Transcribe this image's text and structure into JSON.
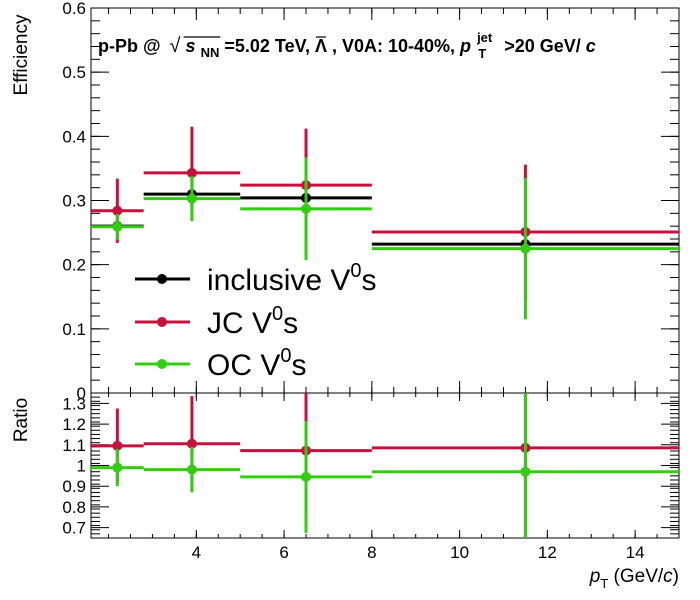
{
  "colors": {
    "inclusive": "#000000",
    "jc": "#c8103c",
    "oc": "#32cd10"
  },
  "header": {
    "prefix": "p-Pb @ ",
    "sqrt": "s",
    "sqrt_sub": "NN",
    "energy": "=5.02 TeV, ",
    "lambda_bar": "Λ",
    "middle": ", V0A: 10-40%, ",
    "pt": "p",
    "pt_sup": "jet",
    "pt_sub": "T",
    "tail": ">20 GeV/",
    "c": "c"
  },
  "legend": [
    {
      "key": "inclusive",
      "label": "inclusive V",
      "sup": "0",
      "suffix": "s"
    },
    {
      "key": "jc",
      "label": "JC V",
      "sup": "0",
      "suffix": "s"
    },
    {
      "key": "oc",
      "label": "OC V",
      "sup": "0",
      "suffix": "s"
    }
  ],
  "chart_data": [
    {
      "type": "scatter",
      "panel": "top",
      "ylabel": "Efficiency",
      "xlim": [
        1.6,
        15.0
      ],
      "ylim": [
        0.0,
        0.6
      ],
      "yticks": [
        "0",
        "0.1",
        "0.2",
        "0.3",
        "0.4",
        "0.5",
        "0.6"
      ],
      "ytick_values": [
        0,
        0.1,
        0.2,
        0.3,
        0.4,
        0.5,
        0.6
      ],
      "x_edges": [
        [
          1.6,
          2.8
        ],
        [
          2.8,
          5.0
        ],
        [
          5.0,
          8.0
        ],
        [
          8.0,
          15.0
        ]
      ],
      "x_centers": [
        2.2,
        3.9,
        6.5,
        11.5
      ],
      "series": [
        {
          "key": "inclusive",
          "name": "inclusive V0s",
          "values": [
            0.26,
            0.31,
            0.304,
            0.232
          ],
          "errors": [
            0.0,
            0.0,
            0.0,
            0.0
          ]
        },
        {
          "key": "jc",
          "name": "JC V0s",
          "values": [
            0.284,
            0.343,
            0.324,
            0.251
          ],
          "errors": [
            0.05,
            0.072,
            0.088,
            0.105
          ]
        },
        {
          "key": "oc",
          "name": "OC V0s",
          "values": [
            0.259,
            0.303,
            0.287,
            0.225
          ],
          "errors": [
            0.02,
            0.035,
            0.08,
            0.11
          ]
        }
      ]
    },
    {
      "type": "scatter",
      "panel": "ratio",
      "xlabel_main": "p",
      "xlabel_sub": "T",
      "xlabel_units_pre": " (GeV/",
      "xlabel_units_c": "c",
      "xlabel_units_post": ")",
      "ylabel": "Ratio",
      "xlim": [
        1.6,
        15.0
      ],
      "ylim": [
        0.65,
        1.35
      ],
      "xticks": [
        "4",
        "6",
        "8",
        "10",
        "12",
        "14"
      ],
      "xtick_values": [
        4,
        6,
        8,
        10,
        12,
        14
      ],
      "yticks": [
        "0.7",
        "0.8",
        "0.9",
        "1",
        "1.1",
        "1.2",
        "1.3"
      ],
      "ytick_values": [
        0.7,
        0.8,
        0.9,
        1.0,
        1.1,
        1.2,
        1.3
      ],
      "x_edges": [
        [
          1.6,
          2.8
        ],
        [
          2.8,
          5.0
        ],
        [
          5.0,
          8.0
        ],
        [
          8.0,
          15.0
        ]
      ],
      "x_centers": [
        2.2,
        3.9,
        6.5,
        11.5
      ],
      "series": [
        {
          "key": "jc",
          "name": "JC V0s",
          "values": [
            1.095,
            1.105,
            1.072,
            1.085
          ],
          "errors": [
            0.18,
            0.23,
            0.3,
            0.45
          ]
        },
        {
          "key": "oc",
          "name": "OC V0s",
          "values": [
            0.99,
            0.98,
            0.945,
            0.97
          ],
          "errors": [
            0.09,
            0.11,
            0.27,
            0.48
          ]
        }
      ]
    }
  ]
}
